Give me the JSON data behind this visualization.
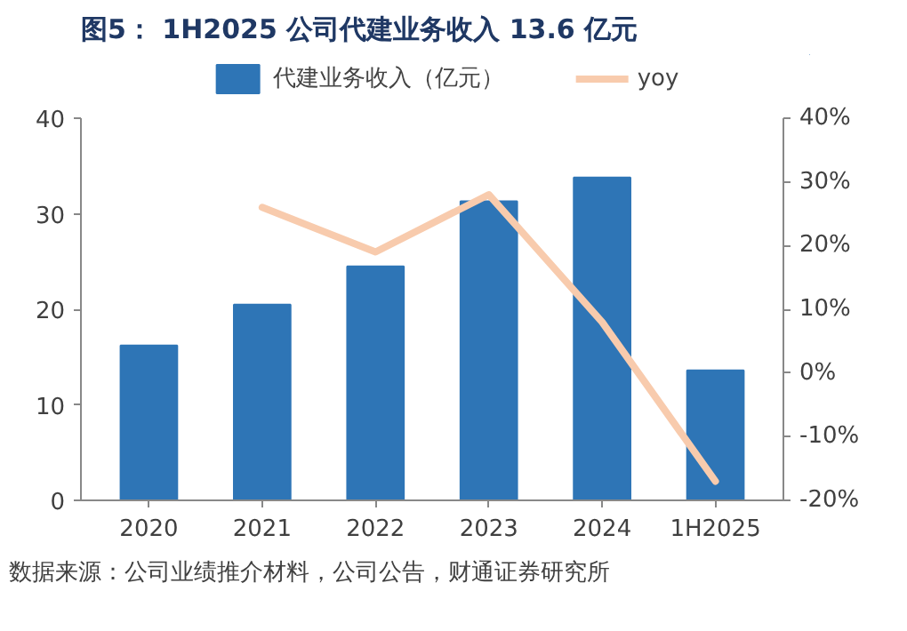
{
  "chart_data": {
    "type": "bar",
    "title": "图5： 1H2025 公司代建业务收入 13.6 亿元",
    "categories": [
      "2020",
      "2021",
      "2022",
      "2023",
      "2024",
      "1H2025"
    ],
    "series": [
      {
        "name": "代建业务收入（亿元）",
        "color": "#2e75b6",
        "values": [
          16.2,
          20.5,
          24.5,
          31.3,
          33.8,
          13.6
        ]
      },
      {
        "name": "yoy",
        "type": "line",
        "axis": "y2",
        "color": "#f8cbad",
        "values": [
          null,
          26,
          19,
          28,
          8,
          -17
        ]
      }
    ],
    "ylim": [
      0,
      40
    ],
    "yticks": [
      0,
      10,
      20,
      30,
      40
    ],
    "y2lim": [
      -20,
      40
    ],
    "y2ticks": [
      {
        "value": -20,
        "label": "-20%"
      },
      {
        "value": -10,
        "label": "-10%"
      },
      {
        "value": 0,
        "label": "0%"
      },
      {
        "value": 10,
        "label": "10%"
      },
      {
        "value": 20,
        "label": "20%"
      },
      {
        "value": 30,
        "label": "30%"
      },
      {
        "value": 40,
        "label": "40%"
      }
    ],
    "legend": "top",
    "grid": false,
    "annotations": [
      "数据来源：公司业绩推介材料，公司公告，财通证券研究所"
    ]
  }
}
